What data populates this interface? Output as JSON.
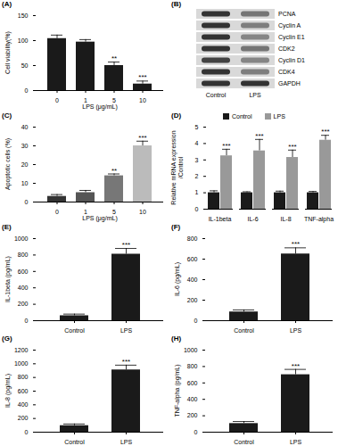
{
  "chart_data": [
    {
      "panel_label": "(A)",
      "type": "bar",
      "categories": [
        "0",
        "1",
        "5",
        "10"
      ],
      "values": [
        104,
        97,
        50,
        13
      ],
      "errors": [
        7,
        5,
        7,
        6
      ],
      "annotations": [
        null,
        null,
        "**",
        "***"
      ],
      "color": "#1a1a1a",
      "x_label": "LPS (μg/mL)",
      "y_label": "Cell viability(%)",
      "ylim": [
        0,
        150
      ],
      "yticks": [
        0,
        50,
        100,
        150
      ]
    },
    {
      "panel_label": "(C)",
      "type": "bar",
      "categories": [
        "0",
        "1",
        "5",
        "10"
      ],
      "values": [
        3,
        5,
        14,
        30
      ],
      "errors": [
        1,
        1.2,
        1,
        2.5
      ],
      "annotations": [
        null,
        null,
        "**",
        "***"
      ],
      "colors": [
        "#333333",
        "#555555",
        "#777777",
        "#bbbbbb"
      ],
      "x_label": "LPS (μg/mL)",
      "y_label": "Apoptotic cells (%)",
      "ylim": [
        0,
        40
      ],
      "yticks": [
        0,
        10,
        20,
        30,
        40
      ]
    },
    {
      "panel_label": "(D)",
      "type": "bar",
      "categories": [
        "IL-1beta",
        "IL-6",
        "IL-8",
        "TNF-alpha"
      ],
      "series": [
        {
          "name": "Control",
          "color": "#1a1a1a",
          "values": [
            1,
            1,
            1,
            1
          ],
          "errors": [
            0.12,
            0.06,
            0.1,
            0.08
          ]
        },
        {
          "name": "LPS",
          "color": "#999999",
          "values": [
            3.25,
            3.55,
            3.15,
            4.2
          ],
          "errors": [
            0.4,
            0.7,
            0.45,
            0.3
          ],
          "annotations": [
            "***",
            "***",
            "***",
            "***"
          ]
        }
      ],
      "legend": "top",
      "y_label": "Relative mRNA expression /Control",
      "ylim": [
        0,
        5
      ],
      "yticks": [
        0,
        1,
        2,
        3,
        4,
        5
      ]
    },
    {
      "panel_label": "(E)",
      "type": "bar",
      "categories": [
        "Control",
        "LPS"
      ],
      "values": [
        60,
        810
      ],
      "errors": [
        20,
        70
      ],
      "annotations": [
        null,
        "***"
      ],
      "color": "#1a1a1a",
      "y_label": "IL-1beta (pg/mL)",
      "ylim": [
        0,
        1000
      ],
      "yticks": [
        0,
        200,
        400,
        600,
        800,
        1000
      ]
    },
    {
      "panel_label": "(F)",
      "type": "bar",
      "categories": [
        "Control",
        "LPS"
      ],
      "values": [
        85,
        650
      ],
      "errors": [
        20,
        60
      ],
      "annotations": [
        null,
        "***"
      ],
      "color": "#1a1a1a",
      "y_label": "IL-6 (pg/mL)",
      "ylim": [
        0,
        800
      ],
      "yticks": [
        0,
        200,
        400,
        600,
        800
      ]
    },
    {
      "panel_label": "(G)",
      "type": "bar",
      "categories": [
        "Control",
        "LPS"
      ],
      "values": [
        95,
        910
      ],
      "errors": [
        25,
        70
      ],
      "annotations": [
        null,
        "***"
      ],
      "color": "#1a1a1a",
      "y_label": "IL-8 (pg/mL)",
      "ylim": [
        0,
        1200
      ],
      "yticks": [
        0,
        200,
        400,
        600,
        800,
        1000,
        1200
      ]
    },
    {
      "panel_label": "(H)",
      "type": "bar",
      "categories": [
        "Control",
        "LPS"
      ],
      "values": [
        105,
        700
      ],
      "errors": [
        25,
        65
      ],
      "annotations": [
        null,
        "***"
      ],
      "color": "#1a1a1a",
      "y_label": "TNF-alpha (pg/mL)",
      "ylim": [
        0,
        1000
      ],
      "yticks": [
        0,
        200,
        400,
        600,
        800,
        1000
      ]
    }
  ],
  "blot": {
    "panel_label": "(B)",
    "lanes": [
      "Control",
      "LPS"
    ],
    "bands": [
      {
        "label": "PCNA",
        "intensity": [
          1,
          0.6
        ]
      },
      {
        "label": "Cyclin A",
        "intensity": [
          1,
          0.55
        ]
      },
      {
        "label": "Cyclin E1",
        "intensity": [
          1,
          0.5
        ]
      },
      {
        "label": "CDK2",
        "intensity": [
          1,
          0.6
        ]
      },
      {
        "label": "Cyclin D1",
        "intensity": [
          0.9,
          0.5
        ]
      },
      {
        "label": "CDK4",
        "intensity": [
          1,
          0.55
        ]
      },
      {
        "label": "GAPDH",
        "intensity": [
          1,
          1
        ]
      }
    ]
  }
}
